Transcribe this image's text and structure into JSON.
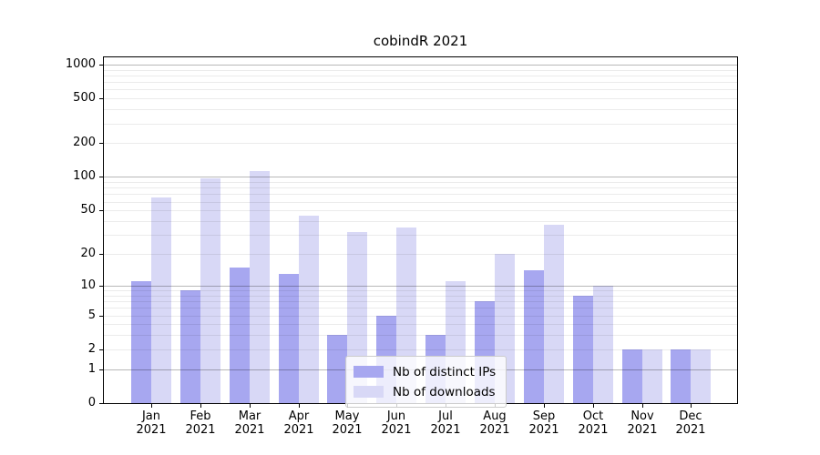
{
  "chart_data": {
    "type": "bar",
    "title": "cobindR 2021",
    "categories": [
      "Jan 2021",
      "Feb 2021",
      "Mar 2021",
      "Apr 2021",
      "May 2021",
      "Jun 2021",
      "Jul 2021",
      "Aug 2021",
      "Sep 2021",
      "Oct 2021",
      "Nov 2021",
      "Dec 2021"
    ],
    "series": [
      {
        "name": "Nb of distinct IPs",
        "color": "#a7a7f0",
        "values": [
          11,
          9,
          15,
          13,
          3,
          5,
          3,
          7,
          14,
          8,
          2,
          2
        ]
      },
      {
        "name": "Nb of downloads",
        "color": "#d8d8f6",
        "values": [
          65,
          97,
          112,
          45,
          32,
          35,
          11,
          20,
          37,
          10,
          2,
          2
        ]
      }
    ],
    "y_axis": {
      "scale": "log10(value+1)",
      "range": [
        0,
        1000
      ],
      "tick_labels": [
        0,
        1,
        2,
        5,
        10,
        20,
        50,
        100,
        200,
        500,
        1000
      ],
      "major_gridlines": [
        1,
        10,
        100,
        1000
      ],
      "minor_gridlines": [
        2,
        3,
        4,
        5,
        6,
        7,
        8,
        9,
        20,
        30,
        40,
        50,
        60,
        70,
        80,
        90,
        200,
        300,
        400,
        500,
        600,
        700,
        800,
        900
      ]
    },
    "xlabel": "",
    "ylabel": "",
    "grid": true,
    "legend_position": "bottom-center"
  },
  "colors": {
    "bar_distinct_ips": "#a7a7f0",
    "bar_downloads": "#d8d8f6",
    "major_gridline": "rgba(0,0,0,0.28)",
    "minor_gridline": "rgba(0,0,0,0.08)",
    "axis": "#000000",
    "background": "#ffffff",
    "legend_border": "#cccccc"
  }
}
